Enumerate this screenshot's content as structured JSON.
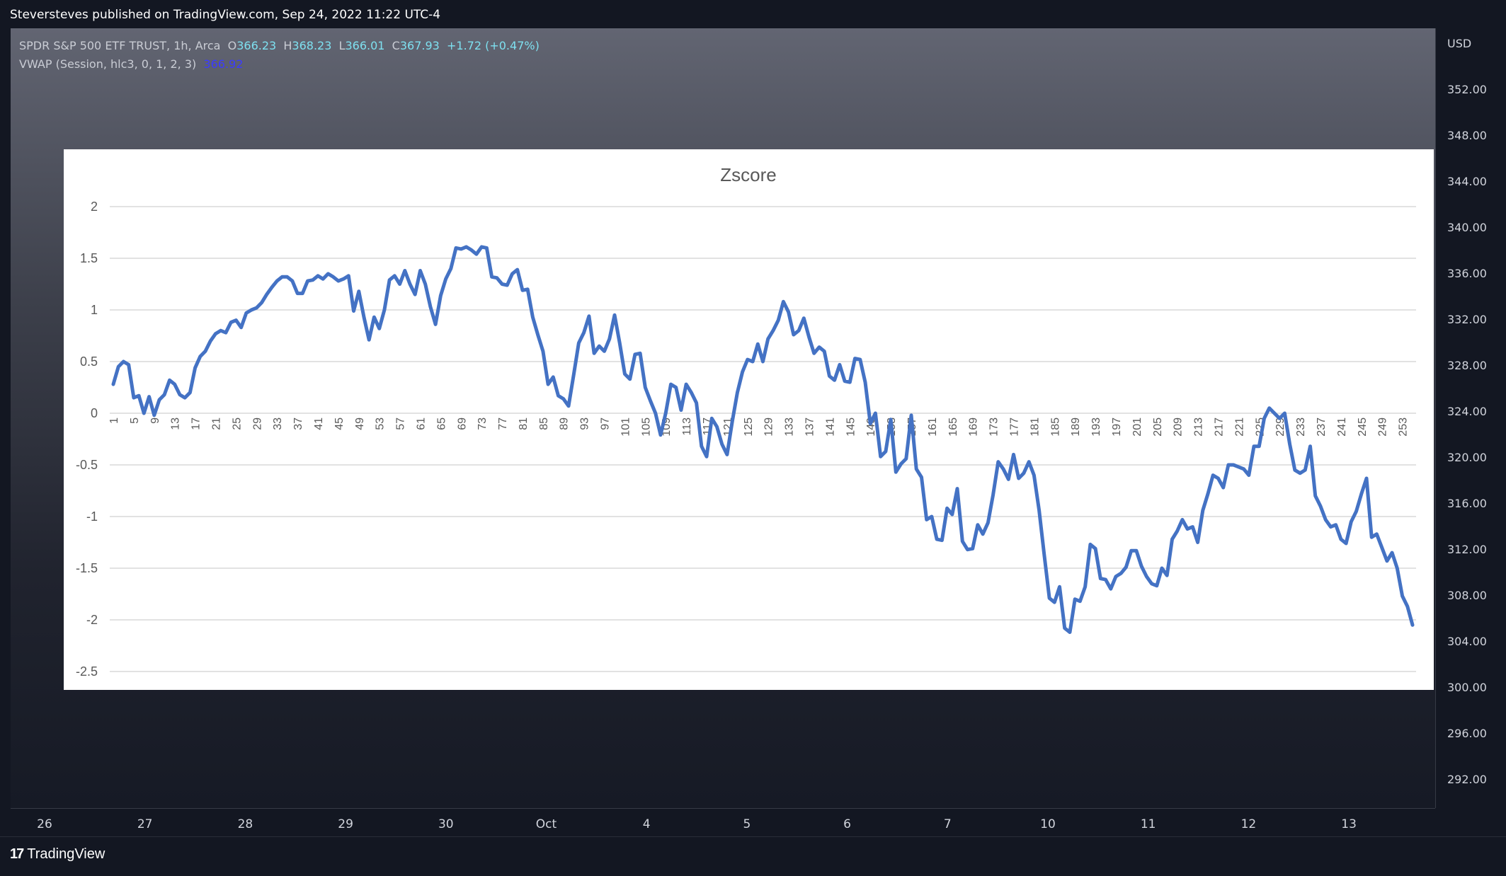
{
  "header": {
    "published": "Steversteves published on TradingView.com, Sep 24, 2022 11:22 UTC-4"
  },
  "legend": {
    "symbol": "SPDR S&P 500 ETF TRUST, 1h, Arca",
    "o_label": "O",
    "o_value": "366.23",
    "h_label": "H",
    "h_value": "368.23",
    "l_label": "L",
    "l_value": "366.01",
    "c_label": "C",
    "c_value": "367.93",
    "change": "+1.72 (+0.47%)",
    "vwap_label": "VWAP (Session, hlc3, 0, 1, 2, 3)",
    "vwap_value": "366.92"
  },
  "price_axis": {
    "currency": "USD",
    "ticks": [
      "352.00",
      "348.00",
      "344.00",
      "340.00",
      "336.00",
      "332.00",
      "328.00",
      "324.00",
      "320.00",
      "316.00",
      "312.00",
      "308.00",
      "304.00",
      "300.00",
      "296.00",
      "292.00"
    ]
  },
  "time_axis": {
    "ticks": [
      "26",
      "27",
      "28",
      "29",
      "30",
      "Oct",
      "4",
      "5",
      "6",
      "7",
      "10",
      "11",
      "12",
      "13"
    ]
  },
  "brand": {
    "logo": "17",
    "name": "TradingView"
  },
  "colors": {
    "line": "#4472c4",
    "grid": "#d9d9d9",
    "bg": "#131722"
  },
  "chart_data": {
    "type": "line",
    "title": "Zscore",
    "xlabel": "",
    "ylabel": "",
    "ylim": [
      -2.5,
      2
    ],
    "yticks": [
      "2",
      "1.5",
      "1",
      "0.5",
      "0",
      "-0.5",
      "-1",
      "-1.5",
      "-2",
      "-2.5"
    ],
    "x_start": 1,
    "x_end": 254,
    "x_label_step": 4,
    "grid": true,
    "series": [
      {
        "values": [
          0.28,
          0.45,
          0.5,
          0.47,
          0.15,
          0.17,
          0.0,
          0.16,
          -0.02,
          0.13,
          0.18,
          0.32,
          0.28,
          0.18,
          0.15,
          0.2,
          0.44,
          0.55,
          0.6,
          0.7,
          0.77,
          0.8,
          0.78,
          0.88,
          0.9,
          0.83,
          0.97,
          1.0,
          1.02,
          1.07,
          1.15,
          1.22,
          1.28,
          1.32,
          1.32,
          1.28,
          1.16,
          1.16,
          1.28,
          1.29,
          1.33,
          1.3,
          1.35,
          1.32,
          1.28,
          1.3,
          1.33,
          0.99,
          1.18,
          0.93,
          0.71,
          0.93,
          0.82,
          1.0,
          1.29,
          1.33,
          1.25,
          1.38,
          1.25,
          1.15,
          1.38,
          1.25,
          1.03,
          0.86,
          1.14,
          1.3,
          1.4,
          1.6,
          1.59,
          1.61,
          1.58,
          1.54,
          1.61,
          1.6,
          1.32,
          1.31,
          1.25,
          1.24,
          1.35,
          1.39,
          1.19,
          1.2,
          0.93,
          0.76,
          0.6,
          0.28,
          0.35,
          0.17,
          0.14,
          0.07,
          0.37,
          0.68,
          0.78,
          0.94,
          0.58,
          0.65,
          0.6,
          0.72,
          0.95,
          0.68,
          0.38,
          0.33,
          0.57,
          0.58,
          0.25,
          0.12,
          0.0,
          -0.21,
          0.0,
          0.28,
          0.25,
          0.03,
          0.28,
          0.2,
          0.1,
          -0.32,
          -0.42,
          -0.05,
          -0.13,
          -0.3,
          -0.4,
          -0.08,
          0.2,
          0.4,
          0.52,
          0.5,
          0.67,
          0.5,
          0.72,
          0.8,
          0.9,
          1.08,
          0.98,
          0.76,
          0.8,
          0.92,
          0.74,
          0.58,
          0.64,
          0.6,
          0.36,
          0.32,
          0.47,
          0.31,
          0.3,
          0.53,
          0.52,
          0.3,
          -0.1,
          0.0,
          -0.42,
          -0.37,
          -0.06,
          -0.57,
          -0.49,
          -0.44,
          -0.02,
          -0.54,
          -0.62,
          -1.03,
          -1.0,
          -1.22,
          -1.23,
          -0.92,
          -0.98,
          -0.73,
          -1.24,
          -1.32,
          -1.31,
          -1.08,
          -1.17,
          -1.06,
          -0.79,
          -0.47,
          -0.54,
          -0.64,
          -0.4,
          -0.63,
          -0.58,
          -0.47,
          -0.6,
          -0.94,
          -1.37,
          -1.79,
          -1.83,
          -1.68,
          -2.08,
          -2.12,
          -1.8,
          -1.82,
          -1.68,
          -1.27,
          -1.31,
          -1.6,
          -1.61,
          -1.7,
          -1.58,
          -1.55,
          -1.49,
          -1.33,
          -1.33,
          -1.48,
          -1.58,
          -1.65,
          -1.67,
          -1.5,
          -1.57,
          -1.22,
          -1.14,
          -1.03,
          -1.12,
          -1.1,
          -1.25,
          -0.94,
          -0.78,
          -0.6,
          -0.63,
          -0.72,
          -0.5,
          -0.5,
          -0.52,
          -0.54,
          -0.6,
          -0.32,
          -0.32,
          -0.05,
          0.05,
          0.0,
          -0.05,
          0.0,
          -0.3,
          -0.55,
          -0.58,
          -0.55,
          -0.32,
          -0.8,
          -0.9,
          -1.03,
          -1.1,
          -1.08,
          -1.22,
          -1.26,
          -1.05,
          -0.95,
          -0.78,
          -0.63,
          -1.2,
          -1.17,
          -1.3,
          -1.43,
          -1.35,
          -1.5,
          -1.77,
          -1.87,
          -2.05
        ]
      }
    ]
  }
}
